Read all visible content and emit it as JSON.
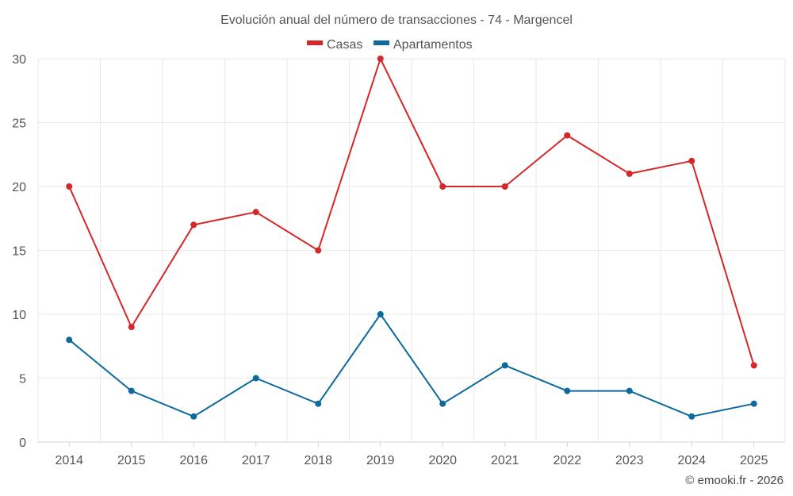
{
  "chart_data": {
    "type": "line",
    "title": "Evolución anual del número de transacciones - 74 - Margencel",
    "categories": [
      "2014",
      "2015",
      "2016",
      "2017",
      "2018",
      "2019",
      "2020",
      "2021",
      "2022",
      "2023",
      "2024",
      "2025"
    ],
    "series": [
      {
        "name": "Casas",
        "color": "#d62728",
        "values": [
          20,
          9,
          17,
          18,
          15,
          30,
          20,
          20,
          24,
          21,
          22,
          6
        ]
      },
      {
        "name": "Apartamentos",
        "color": "#0e6a9c",
        "values": [
          8,
          4,
          2,
          5,
          3,
          10,
          3,
          6,
          4,
          4,
          2,
          3
        ]
      }
    ],
    "ylim": [
      0,
      30
    ],
    "yticks": [
      "0",
      "5",
      "10",
      "15",
      "20",
      "25",
      "30"
    ],
    "xlabel": "",
    "ylabel": "",
    "grid": true,
    "legend_position": "top-center"
  },
  "credit": "© emooki.fr - 2026"
}
